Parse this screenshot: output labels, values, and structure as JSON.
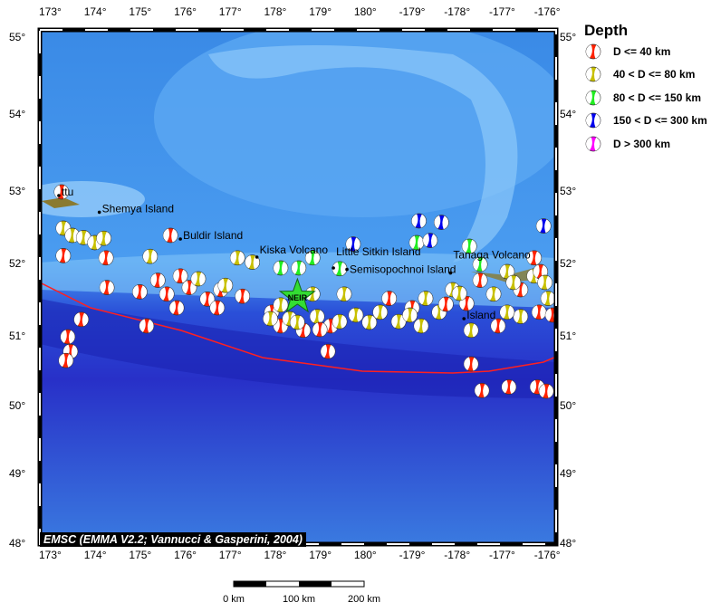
{
  "map": {
    "lon_ticks": [
      "173°",
      "174°",
      "175°",
      "176°",
      "177°",
      "178°",
      "179°",
      "180°",
      "-179°",
      "-178°",
      "-177°",
      "-176°"
    ],
    "lat_ticks": [
      "55°",
      "54°",
      "53°",
      "52°",
      "51°",
      "50°",
      "49°",
      "48°"
    ],
    "places": [
      {
        "name": "ttu",
        "lon": 173.2,
        "lat": 52.95
      },
      {
        "name": "Shemya Island",
        "lon": 174.1,
        "lat": 52.72
      },
      {
        "name": "Buldir Island",
        "lon": 175.9,
        "lat": 52.35
      },
      {
        "name": "Kiska Volcano",
        "lon": 177.6,
        "lat": 52.1
      },
      {
        "name": "Little Sitkin Island",
        "lon": 179.3,
        "lat": 51.95
      },
      {
        "name": "Semisopochnoi Island",
        "lon": 179.6,
        "lat": 51.93
      },
      {
        "name": "Tanaga Volcano",
        "lon": -178.1,
        "lat": 51.88
      },
      {
        "name": "Island",
        "lon": -177.8,
        "lat": 51.25
      }
    ],
    "epicenter": {
      "label": "NEIR",
      "lon": 178.5,
      "lat": 51.55,
      "color": "#33dd33"
    },
    "credit": "EMSC (EMMA V2.2; Vannucci & Gasperini, 2004)",
    "scale_labels": [
      "0 km",
      "100 km",
      "200 km"
    ]
  },
  "legend": {
    "title": "Depth",
    "classes": [
      {
        "label": "D <= 40 km",
        "color": "#ff2200"
      },
      {
        "label": "40 < D <= 80 km",
        "color": "#c8c000"
      },
      {
        "label": "80 < D <= 150 km",
        "color": "#22ee22"
      },
      {
        "label": "150 < D <= 300 km",
        "color": "#0000ee"
      },
      {
        "label": "D > 300 km",
        "color": "#ff00ff"
      }
    ]
  },
  "events": [
    [
      173.26,
      53.0,
      0
    ],
    [
      173.3,
      52.5,
      1
    ],
    [
      173.3,
      52.12,
      0
    ],
    [
      173.5,
      52.4,
      1
    ],
    [
      173.75,
      52.37,
      1
    ],
    [
      174.0,
      52.3,
      1
    ],
    [
      174.2,
      52.36,
      1
    ],
    [
      174.25,
      52.09,
      0
    ],
    [
      173.7,
      51.24,
      0
    ],
    [
      173.4,
      51.0,
      0
    ],
    [
      173.46,
      50.79,
      0
    ],
    [
      173.36,
      50.66,
      0
    ],
    [
      174.27,
      51.68,
      0
    ],
    [
      175.68,
      52.4,
      0
    ],
    [
      175.23,
      52.11,
      1
    ],
    [
      175.15,
      51.15,
      0
    ],
    [
      175.0,
      51.62,
      0
    ],
    [
      175.4,
      51.78,
      0
    ],
    [
      175.6,
      51.59,
      0
    ],
    [
      175.9,
      51.84,
      0
    ],
    [
      176.1,
      51.68,
      0
    ],
    [
      176.3,
      51.8,
      1
    ],
    [
      176.5,
      51.52,
      0
    ],
    [
      176.8,
      51.65,
      0
    ],
    [
      176.9,
      51.71,
      1
    ],
    [
      177.17,
      52.09,
      1
    ],
    [
      177.28,
      51.56,
      0
    ],
    [
      176.72,
      51.4,
      0
    ],
    [
      175.82,
      51.4,
      0
    ],
    [
      177.5,
      52.03,
      1
    ],
    [
      177.93,
      51.34,
      0
    ],
    [
      178.13,
      51.15,
      0
    ],
    [
      178.33,
      51.25,
      1
    ],
    [
      178.63,
      51.09,
      0
    ],
    [
      178.94,
      51.28,
      1
    ],
    [
      179.24,
      51.15,
      0
    ],
    [
      179.44,
      51.21,
      1
    ],
    [
      179.18,
      50.79,
      0
    ],
    [
      178.13,
      51.44,
      1
    ],
    [
      178.84,
      51.59,
      1
    ],
    [
      179.54,
      51.59,
      1
    ],
    [
      177.9,
      51.25,
      1
    ],
    [
      178.5,
      51.2,
      1
    ],
    [
      179.0,
      51.1,
      0
    ],
    [
      179.8,
      51.3,
      1
    ],
    [
      178.13,
      51.95,
      2
    ],
    [
      178.53,
      51.95,
      2
    ],
    [
      178.84,
      52.09,
      2
    ],
    [
      179.44,
      51.94,
      2
    ],
    [
      -177.68,
      52.25,
      2
    ],
    [
      -177.44,
      52.0,
      2
    ],
    [
      -178.85,
      52.3,
      2
    ],
    [
      179.74,
      52.28,
      3
    ],
    [
      -178.8,
      52.6,
      3
    ],
    [
      -178.3,
      52.58,
      3
    ],
    [
      -176.03,
      52.53,
      3
    ],
    [
      -178.55,
      52.33,
      3
    ],
    [
      -179.66,
      51.34,
      1
    ],
    [
      -179.25,
      51.21,
      1
    ],
    [
      -178.95,
      51.4,
      0
    ],
    [
      -178.65,
      51.53,
      1
    ],
    [
      -178.35,
      51.34,
      1
    ],
    [
      -178.05,
      51.65,
      1
    ],
    [
      -177.74,
      51.46,
      0
    ],
    [
      -177.44,
      51.78,
      0
    ],
    [
      -177.14,
      51.59,
      1
    ],
    [
      -176.84,
      51.9,
      1
    ],
    [
      -176.54,
      51.65,
      0
    ],
    [
      -176.24,
      51.84,
      1
    ],
    [
      -175.93,
      51.53,
      1
    ],
    [
      -177.64,
      51.09,
      1
    ],
    [
      -177.04,
      51.15,
      0
    ],
    [
      -176.54,
      51.28,
      1
    ],
    [
      -176.13,
      51.34,
      0
    ],
    [
      -175.83,
      51.3,
      0
    ],
    [
      -178.75,
      51.15,
      1
    ],
    [
      -179.46,
      51.53,
      0
    ],
    [
      -176.84,
      51.34,
      1
    ],
    [
      -176.1,
      51.9,
      0
    ],
    [
      -176.24,
      52.09,
      0
    ],
    [
      -179.9,
      51.2,
      1
    ],
    [
      -179.0,
      51.3,
      1
    ],
    [
      -178.2,
      51.45,
      0
    ],
    [
      -177.9,
      51.6,
      1
    ],
    [
      -176.7,
      51.75,
      1
    ],
    [
      -176.0,
      51.75,
      1
    ],
    [
      -177.64,
      50.61,
      0
    ],
    [
      -177.4,
      50.23,
      0
    ],
    [
      -176.8,
      50.28,
      0
    ],
    [
      -176.17,
      50.28,
      0
    ],
    [
      -175.97,
      50.22,
      0
    ]
  ]
}
